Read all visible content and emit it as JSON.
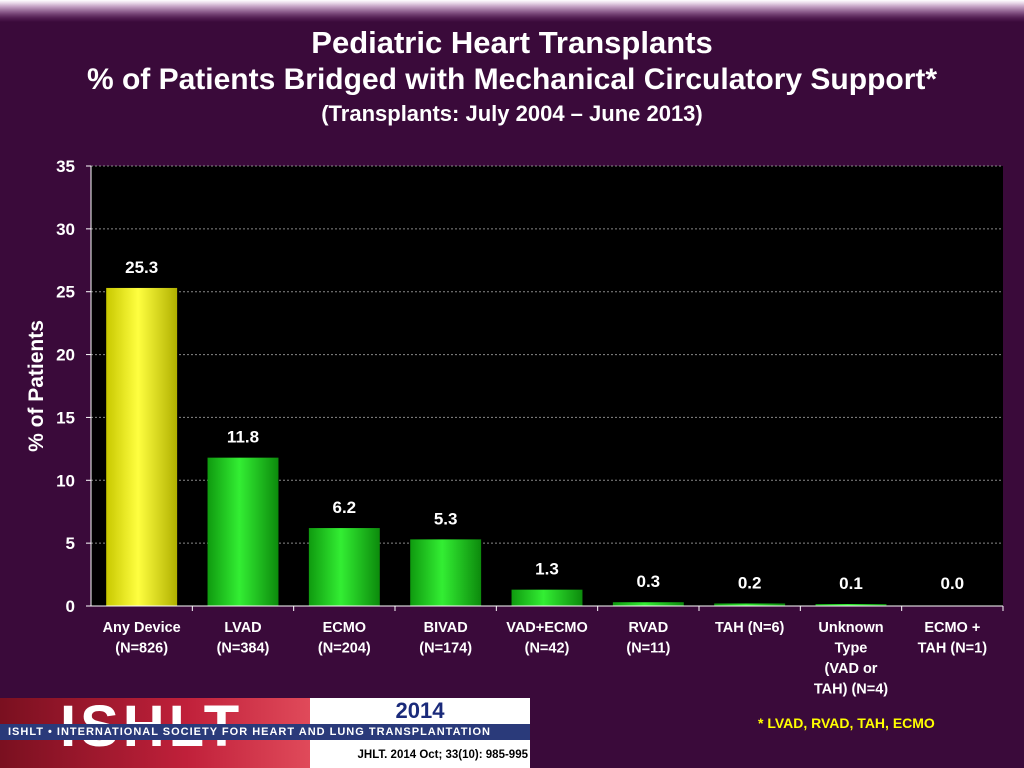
{
  "header": {
    "title": "Pediatric Heart Transplants",
    "subtitle": "% of Patients Bridged with Mechanical Circulatory Support*",
    "dates": "(Transplants: July 2004 – June 2013)"
  },
  "chart_data": {
    "type": "bar",
    "ylabel": "% of Patients",
    "ylim": [
      0,
      35
    ],
    "yticks": [
      "0",
      "5",
      "10",
      "15",
      "20",
      "25",
      "30",
      "35"
    ],
    "grid": true,
    "categories": [
      [
        "Any Device",
        "(N=826)"
      ],
      [
        "LVAD",
        "(N=384)"
      ],
      [
        "ECMO",
        "(N=204)"
      ],
      [
        "BIVAD",
        "(N=174)"
      ],
      [
        "VAD+ECMO",
        "(N=42)"
      ],
      [
        "RVAD",
        "(N=11)"
      ],
      [
        "TAH (N=6)"
      ],
      [
        "Unknown",
        "Type",
        "(VAD or",
        "TAH) (N=4)"
      ],
      [
        "ECMO +",
        "TAH (N=1)"
      ]
    ],
    "values": [
      25.3,
      11.8,
      6.2,
      5.3,
      1.3,
      0.3,
      0.2,
      0.1,
      0.0
    ],
    "data_labels": [
      "25.3",
      "11.8",
      "6.2",
      "5.3",
      "1.3",
      "0.3",
      "0.2",
      "0.1",
      "0.0"
    ],
    "colors": {
      "first_bar": "#ffff00",
      "other_bars": "#22dd22",
      "plot_background": "#000000",
      "grid": "#888888",
      "text": "#ffffff"
    }
  },
  "footnote": "* LVAD, RVAD, TAH, ECMO",
  "logo": {
    "letters": "ISHLT",
    "year": "2014",
    "band": "ISHLT • INTERNATIONAL SOCIETY FOR HEART AND LUNG TRANSPLANTATION",
    "citation": "JHLT. 2014 Oct; 33(10): 985-995"
  }
}
